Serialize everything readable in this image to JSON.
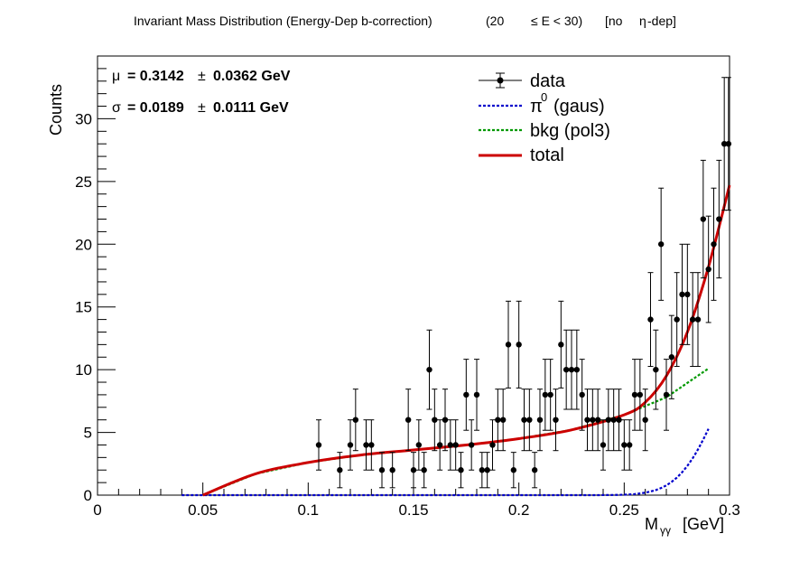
{
  "chart_data": {
    "type": "scatter",
    "title": {
      "main": "Invariant Mass Distribution (Energy-Dep b-correction)",
      "range_open": "(20",
      "range_le": "≤ E < 30)",
      "note_open": "[no",
      "eta": "η",
      "note_close": "-dep]"
    },
    "xlabel": {
      "base": "M",
      "sub": "γγ",
      "unit": "[GeV]"
    },
    "ylabel": "Counts",
    "xlim": [
      0,
      0.3
    ],
    "ylim": [
      0,
      35
    ],
    "xticks": [
      0,
      0.05,
      0.1,
      0.15,
      0.2,
      0.25,
      0.3
    ],
    "xtick_labels": [
      "0",
      "0.05",
      "0.1",
      "0.15",
      "0.2",
      "0.25",
      "0.3"
    ],
    "yticks": [
      0,
      5,
      10,
      15,
      20,
      25,
      30
    ],
    "ytick_labels": [
      "0",
      "5",
      "10",
      "15",
      "20",
      "25",
      "30"
    ],
    "stats": {
      "mu_symbol": "μ",
      "mu_value": "= 0.3142",
      "mu_pm": "±",
      "mu_err": "0.0362 GeV",
      "sigma_symbol": "σ",
      "sigma_value": "= 0.0189",
      "sigma_pm": "±",
      "sigma_err": "0.0111 GeV"
    },
    "legend": {
      "placement": "top-right",
      "data": "data",
      "signal_symbol": "π",
      "signal_sup": "0",
      "signal_text": "(gaus)",
      "bkg": "bkg (pol3)",
      "total": "total"
    },
    "colors": {
      "data": "#000000",
      "signal": "#0000cc",
      "bkg": "#009900",
      "total": "#cc0000"
    },
    "data": {
      "x": [
        0.105,
        0.115,
        0.12,
        0.1225,
        0.1275,
        0.13,
        0.135,
        0.14,
        0.1475,
        0.15,
        0.1525,
        0.155,
        0.1575,
        0.16,
        0.1625,
        0.165,
        0.1675,
        0.17,
        0.1725,
        0.175,
        0.1775,
        0.18,
        0.1825,
        0.185,
        0.1875,
        0.19,
        0.1925,
        0.195,
        0.1975,
        0.2,
        0.2025,
        0.205,
        0.2075,
        0.21,
        0.2125,
        0.215,
        0.2175,
        0.22,
        0.2225,
        0.225,
        0.2275,
        0.23,
        0.2325,
        0.235,
        0.2375,
        0.24,
        0.2425,
        0.245,
        0.2475,
        0.25,
        0.2525,
        0.255,
        0.2575,
        0.26,
        0.2625,
        0.265,
        0.2675,
        0.27,
        0.2725,
        0.275,
        0.2775,
        0.28,
        0.2825,
        0.285,
        0.2875,
        0.29,
        0.2925,
        0.295,
        0.2975,
        0.2995
      ],
      "y": [
        4,
        2,
        4,
        6,
        4,
        4,
        2,
        2,
        6,
        2,
        4,
        2,
        10,
        6,
        4,
        6,
        4,
        4,
        2,
        8,
        4,
        8,
        2,
        2,
        4,
        6,
        6,
        12,
        2,
        12,
        6,
        6,
        2,
        6,
        8,
        8,
        6,
        12,
        10,
        10,
        10,
        8,
        6,
        6,
        6,
        4,
        6,
        6,
        6,
        4,
        4,
        8,
        8,
        6,
        14,
        10,
        20,
        8,
        11,
        14,
        16,
        16,
        14,
        14,
        22,
        18,
        20,
        22,
        28,
        28
      ],
      "yerr": [
        2.0,
        1.41,
        2.0,
        2.45,
        2.0,
        2.0,
        1.41,
        1.41,
        2.45,
        1.41,
        2.0,
        1.41,
        3.16,
        2.45,
        2.0,
        2.45,
        2.0,
        2.0,
        1.41,
        2.83,
        2.0,
        2.83,
        1.41,
        1.41,
        2.0,
        2.45,
        2.45,
        3.46,
        1.41,
        3.46,
        2.45,
        2.45,
        1.41,
        2.45,
        2.83,
        2.83,
        2.45,
        3.46,
        3.16,
        3.16,
        3.16,
        2.83,
        2.45,
        2.45,
        2.45,
        2.0,
        2.45,
        2.45,
        2.45,
        2.0,
        2.0,
        2.83,
        2.83,
        2.45,
        3.74,
        3.16,
        4.47,
        2.83,
        3.32,
        3.74,
        4.0,
        4.0,
        3.74,
        3.74,
        4.69,
        4.24,
        4.47,
        4.69,
        5.29,
        5.29
      ]
    },
    "signal_fit": {
      "mean": 0.3142,
      "sigma": 0.0189,
      "amplitude": 12.0,
      "x_range": [
        0.04,
        0.29
      ]
    },
    "bkg_fit": {
      "x": [
        0.05,
        0.075,
        0.1,
        0.125,
        0.15,
        0.175,
        0.2,
        0.225,
        0.25,
        0.27,
        0.29
      ],
      "y": [
        0.0,
        1.7,
        2.6,
        3.2,
        3.6,
        4.0,
        4.5,
        5.2,
        6.4,
        7.8,
        10.1
      ]
    },
    "total_fit": {
      "x": [
        0.05,
        0.075,
        0.1,
        0.125,
        0.15,
        0.175,
        0.2,
        0.225,
        0.25,
        0.26,
        0.27,
        0.28,
        0.29,
        0.3
      ],
      "y": [
        0.0,
        1.7,
        2.6,
        3.2,
        3.6,
        4.0,
        4.5,
        5.2,
        6.4,
        7.4,
        9.5,
        13.0,
        18.2,
        24.7
      ]
    },
    "grid": false
  }
}
